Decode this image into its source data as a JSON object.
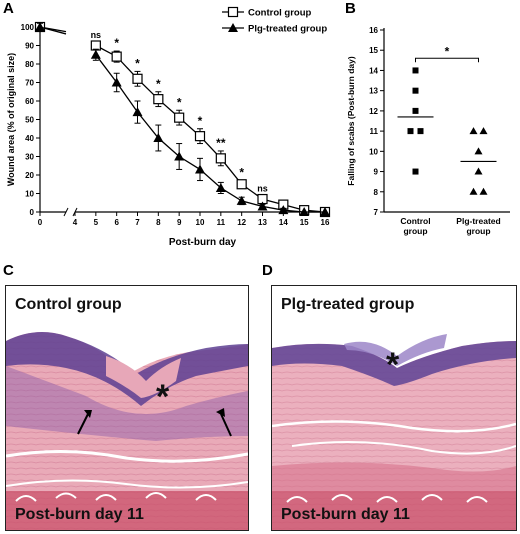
{
  "panels": {
    "a": "A",
    "b": "B",
    "c": "C",
    "d": "D"
  },
  "chart_data": [
    {
      "type": "line",
      "panel": "A",
      "xlabel": "Post-burn day",
      "ylabel": "Wound area (% of original size)",
      "xlim": [
        0,
        16
      ],
      "ylim": [
        0,
        100
      ],
      "x_break": [
        0,
        4
      ],
      "xticks": [
        0,
        4,
        5,
        6,
        7,
        8,
        9,
        10,
        11,
        12,
        13,
        14,
        15,
        16
      ],
      "yticks": [
        0,
        10,
        20,
        30,
        40,
        50,
        60,
        70,
        80,
        90,
        100
      ],
      "series": [
        {
          "name": "Control group",
          "marker": "open-square",
          "x": [
            0,
            5,
            6,
            7,
            8,
            9,
            10,
            11,
            12,
            13,
            14,
            15,
            16
          ],
          "values": [
            100,
            90,
            84,
            72,
            61,
            51,
            41,
            29,
            15,
            7,
            4,
            1,
            0
          ],
          "error": [
            2,
            2,
            3,
            4,
            4,
            4,
            4,
            4,
            2,
            2,
            1,
            1,
            0
          ]
        },
        {
          "name": "Plg-treated group",
          "marker": "filled-triangle",
          "x": [
            0,
            5,
            6,
            7,
            8,
            9,
            10,
            11,
            12,
            13,
            14,
            15,
            16
          ],
          "values": [
            100,
            85,
            70,
            54,
            40,
            30,
            23,
            13,
            6,
            3,
            1,
            0,
            0
          ],
          "error": [
            2,
            3,
            5,
            6,
            7,
            7,
            6,
            3,
            2,
            1,
            1,
            0,
            0
          ]
        }
      ],
      "annotations": [
        {
          "x": 5,
          "text": "ns"
        },
        {
          "x": 6,
          "text": "*"
        },
        {
          "x": 7,
          "text": "*"
        },
        {
          "x": 8,
          "text": "*"
        },
        {
          "x": 9,
          "text": "*"
        },
        {
          "x": 10,
          "text": "*"
        },
        {
          "x": 11,
          "text": "**"
        },
        {
          "x": 12,
          "text": "*"
        },
        {
          "x": 13,
          "text": "ns"
        }
      ]
    },
    {
      "type": "scatter",
      "panel": "B",
      "ylabel": "Falling of scabs (Post-burn day)",
      "ylim": [
        7,
        16
      ],
      "yticks": [
        7,
        8,
        9,
        10,
        11,
        12,
        13,
        14,
        15,
        16
      ],
      "categories": [
        "Control group",
        "Plg-treated group"
      ],
      "series": [
        {
          "name": "Control group",
          "marker": "filled-square",
          "values": [
            14,
            13,
            12,
            11,
            11,
            9
          ],
          "mean": 11.7
        },
        {
          "name": "Plg-treated group",
          "marker": "filled-triangle",
          "values": [
            11,
            11,
            10,
            9,
            8,
            8
          ],
          "mean": 9.5
        }
      ],
      "significance": "*"
    }
  ],
  "histology": {
    "c_label": "Control group",
    "c_caption": "Post-burn day 11",
    "d_label": "Plg-treated group",
    "d_caption": "Post-burn day 11",
    "scab_marker": "*"
  },
  "colors": {
    "tissue_pink": "#e7a3b4",
    "epidermis_purple": "#5a3f8f",
    "muscle_red": "#b9374b"
  }
}
